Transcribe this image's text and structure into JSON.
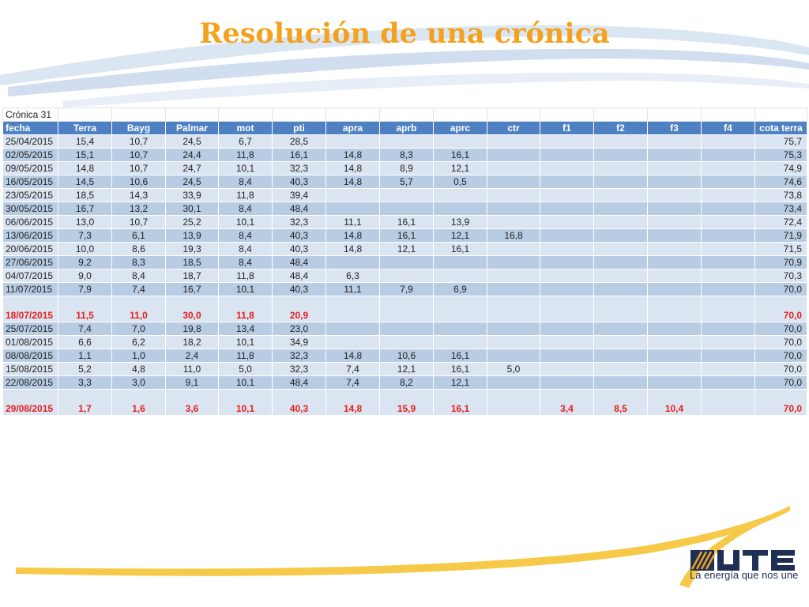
{
  "slide": {
    "title": "Resolución de una crónica"
  },
  "table": {
    "caption": "Crónica 31",
    "headers": [
      "fecha",
      "Terra",
      "Bayg",
      "Palmar",
      "mot",
      "pti",
      "apra",
      "aprb",
      "aprc",
      "ctr",
      "f1",
      "f2",
      "f3",
      "f4",
      "cota terra"
    ],
    "rows": [
      {
        "style": "normal",
        "cells": [
          "25/04/2015",
          "15,4",
          "10,7",
          "24,5",
          "6,7",
          "28,5",
          "",
          "",
          "",
          "",
          "",
          "",
          "",
          "",
          "75,7"
        ]
      },
      {
        "style": "normal",
        "cells": [
          "02/05/2015",
          "15,1",
          "10,7",
          "24,4",
          "11,8",
          "16,1",
          "14,8",
          "8,3",
          "16,1",
          "",
          "",
          "",
          "",
          "",
          "75,3"
        ]
      },
      {
        "style": "normal",
        "cells": [
          "09/05/2015",
          "14,8",
          "10,7",
          "24,7",
          "10,1",
          "32,3",
          "14,8",
          "8,9",
          "12,1",
          "",
          "",
          "",
          "",
          "",
          "74,9"
        ]
      },
      {
        "style": "normal",
        "cells": [
          "16/05/2015",
          "14,5",
          "10,6",
          "24,5",
          "8,4",
          "40,3",
          "14,8",
          "5,7",
          "0,5",
          "",
          "",
          "",
          "",
          "",
          "74,6"
        ]
      },
      {
        "style": "normal",
        "cells": [
          "23/05/2015",
          "18,5",
          "14,3",
          "33,9",
          "11,8",
          "39,4",
          "",
          "",
          "",
          "",
          "",
          "",
          "",
          "",
          "73,8"
        ]
      },
      {
        "style": "normal",
        "cells": [
          "30/05/2015",
          "16,7",
          "13,2",
          "30,1",
          "8,4",
          "48,4",
          "",
          "",
          "",
          "",
          "",
          "",
          "",
          "",
          "73,4"
        ]
      },
      {
        "style": "normal",
        "cells": [
          "06/06/2015",
          "13,0",
          "10,7",
          "25,2",
          "10,1",
          "32,3",
          "11,1",
          "16,1",
          "13,9",
          "",
          "",
          "",
          "",
          "",
          "72,4"
        ]
      },
      {
        "style": "normal",
        "cells": [
          "13/06/2015",
          "7,3",
          "6,1",
          "13,9",
          "8,4",
          "40,3",
          "14,8",
          "16,1",
          "12,1",
          "16,8",
          "",
          "",
          "",
          "",
          "71,9"
        ]
      },
      {
        "style": "normal",
        "cells": [
          "20/06/2015",
          "10,0",
          "8,6",
          "19,3",
          "8,4",
          "40,3",
          "14,8",
          "12,1",
          "16,1",
          "",
          "",
          "",
          "",
          "",
          "71,5"
        ]
      },
      {
        "style": "normal",
        "cells": [
          "27/06/2015",
          "9,2",
          "8,3",
          "18,5",
          "8,4",
          "48,4",
          "",
          "",
          "",
          "",
          "",
          "",
          "",
          "",
          "70,9"
        ]
      },
      {
        "style": "normal",
        "cells": [
          "04/07/2015",
          "9,0",
          "8,4",
          "18,7",
          "11,8",
          "48,4",
          "6,3",
          "",
          "",
          "",
          "",
          "",
          "",
          "",
          "70,3"
        ]
      },
      {
        "style": "normal",
        "cells": [
          "11/07/2015",
          "7,9",
          "7,4",
          "16,7",
          "10,1",
          "40,3",
          "11,1",
          "7,9",
          "6,9",
          "",
          "",
          "",
          "",
          "",
          "70,0"
        ]
      },
      {
        "style": "red",
        "cells": [
          "18/07/2015",
          "11,5",
          "11,0",
          "30,0",
          "11,8",
          "20,9",
          "",
          "",
          "",
          "",
          "",
          "",
          "",
          "",
          "70,0"
        ]
      },
      {
        "style": "normal",
        "cells": [
          "25/07/2015",
          "7,4",
          "7,0",
          "19,8",
          "13,4",
          "23,0",
          "",
          "",
          "",
          "",
          "",
          "",
          "",
          "",
          "70,0"
        ]
      },
      {
        "style": "normal",
        "cells": [
          "01/08/2015",
          "6,6",
          "6,2",
          "18,2",
          "10,1",
          "34,9",
          "",
          "",
          "",
          "",
          "",
          "",
          "",
          "",
          "70,0"
        ]
      },
      {
        "style": "normal",
        "cells": [
          "08/08/2015",
          "1,1",
          "1,0",
          "2,4",
          "11,8",
          "32,3",
          "14,8",
          "10,6",
          "16,1",
          "",
          "",
          "",
          "",
          "",
          "70,0"
        ]
      },
      {
        "style": "normal",
        "cells": [
          "15/08/2015",
          "5,2",
          "4,8",
          "11,0",
          "5,0",
          "32,3",
          "7,4",
          "12,1",
          "16,1",
          "5,0",
          "",
          "",
          "",
          "",
          "70,0"
        ]
      },
      {
        "style": "normal",
        "cells": [
          "22/08/2015",
          "3,3",
          "3,0",
          "9,1",
          "10,1",
          "48,4",
          "7,4",
          "8,2",
          "12,1",
          "",
          "",
          "",
          "",
          "",
          "70,0"
        ]
      },
      {
        "style": "red",
        "cells": [
          "29/08/2015",
          "1,7",
          "1,6",
          "3,6",
          "10,1",
          "40,3",
          "14,8",
          "15,9",
          "16,1",
          "",
          "3,4",
          "8,5",
          "10,4",
          "",
          "70,0"
        ]
      }
    ]
  },
  "logo": {
    "tagline": "La energía que nos une",
    "icon": "ute-logo"
  },
  "colors": {
    "title": "#f4a21e",
    "header": "#4f81c2",
    "row_light": "#dbe5f1",
    "row_dark": "#b8cce4",
    "highlight_text": "#e61e1e"
  }
}
